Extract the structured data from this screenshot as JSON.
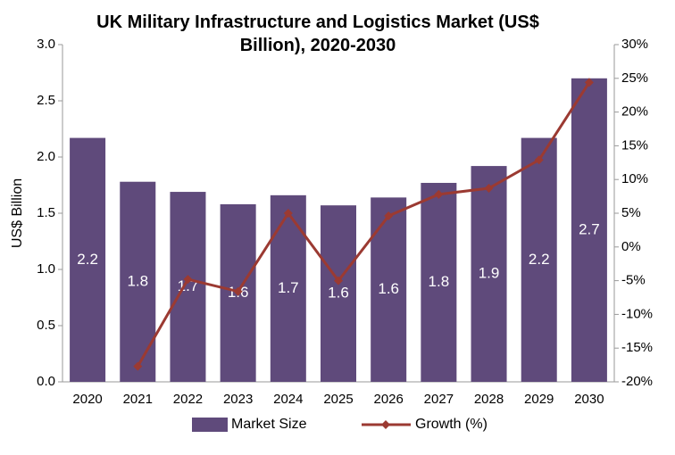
{
  "chart_data": {
    "type": "bar",
    "title": "UK Military Infrastructure and Logistics Market (US$ Billion), 2020-2030",
    "y_label": "US$ Billion",
    "categories": [
      "2020",
      "2021",
      "2022",
      "2023",
      "2024",
      "2025",
      "2026",
      "2027",
      "2028",
      "2029",
      "2030"
    ],
    "series": [
      {
        "name": "Market Size",
        "type": "bar",
        "color": "#5f4a7b",
        "values": [
          2.17,
          1.78,
          1.69,
          1.58,
          1.66,
          1.57,
          1.64,
          1.77,
          1.92,
          2.17,
          2.7
        ],
        "value_labels": [
          "2.2",
          "1.8",
          "1.7",
          "1.6",
          "1.7",
          "1.6",
          "1.6",
          "1.8",
          "1.9",
          "2.2",
          "2.7"
        ]
      },
      {
        "name": "Growth (%)",
        "type": "line",
        "axis": "y2",
        "color": "#9b3a32",
        "values": [
          null,
          -17.7,
          -4.8,
          -6.6,
          5.0,
          -5.0,
          4.6,
          7.8,
          8.7,
          12.9,
          24.4
        ]
      }
    ],
    "ylim": [
      0,
      3
    ],
    "yticks": [
      {
        "value": 0,
        "label": "0.0"
      },
      {
        "value": 0.5,
        "label": "0.5"
      },
      {
        "value": 1,
        "label": "1.0"
      },
      {
        "value": 1.5,
        "label": "1.5"
      },
      {
        "value": 2,
        "label": "2.0"
      },
      {
        "value": 2.5,
        "label": "2.5"
      },
      {
        "value": 3,
        "label": "3.0"
      }
    ],
    "y2lim": [
      -20,
      30
    ],
    "y2ticks": [
      {
        "value": -20,
        "label": "-20%"
      },
      {
        "value": -15,
        "label": "-15%"
      },
      {
        "value": -10,
        "label": "-10%"
      },
      {
        "value": -5,
        "label": "-5%"
      },
      {
        "value": 0,
        "label": "0%"
      },
      {
        "value": 5,
        "label": "5%"
      },
      {
        "value": 10,
        "label": "10%"
      },
      {
        "value": 15,
        "label": "15%"
      },
      {
        "value": 20,
        "label": "20%"
      },
      {
        "value": 25,
        "label": "25%"
      },
      {
        "value": 30,
        "label": "30%"
      }
    ],
    "grid": false,
    "legend": "bottom"
  }
}
